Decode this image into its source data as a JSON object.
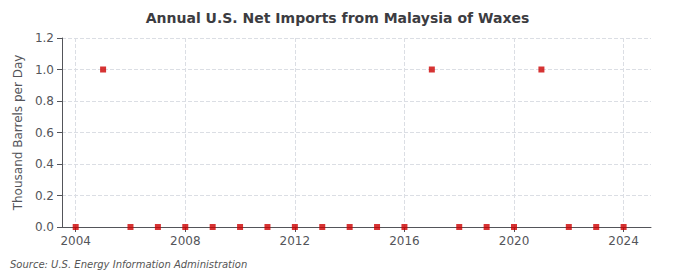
{
  "chart_data": {
    "type": "scatter",
    "title": "Annual U.S. Net Imports from Malaysia of Waxes",
    "ylabel": "Thousand Barrels per Day",
    "annotation": "Source: U.S. Energy Information Administration",
    "x": [
      2004,
      2005,
      2006,
      2007,
      2008,
      2009,
      2010,
      2011,
      2012,
      2013,
      2014,
      2015,
      2016,
      2017,
      2018,
      2019,
      2020,
      2021,
      2022,
      2023,
      2024
    ],
    "values": [
      0.0,
      1.0,
      0.0,
      0.0,
      0.0,
      0.0,
      0.0,
      0.0,
      0.0,
      0.0,
      0.0,
      0.0,
      0.0,
      1.0,
      0.0,
      0.0,
      0.0,
      1.0,
      0.0,
      0.0,
      0.0
    ],
    "color": "#cc0000",
    "marker": "square",
    "xlim": [
      2003.5,
      2025.0
    ],
    "xticks": [
      2004,
      2008,
      2012,
      2016,
      2020,
      2024
    ],
    "ylim": [
      0.0,
      1.2
    ],
    "yticks": [
      {
        "value": 0.0,
        "label": "0.0"
      },
      0.2,
      0.4,
      0.6,
      0.8,
      {
        "value": 1.0,
        "label": "1.0"
      },
      1.2
    ],
    "grid": true
  }
}
